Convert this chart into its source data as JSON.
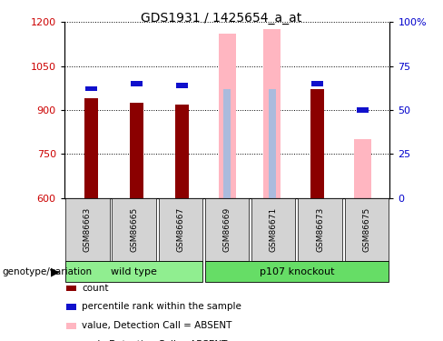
{
  "title": "GDS1931 / 1425654_a_at",
  "samples": [
    "GSM86663",
    "GSM86665",
    "GSM86667",
    "GSM86669",
    "GSM86671",
    "GSM86673",
    "GSM86675"
  ],
  "ylim_left": [
    600,
    1200
  ],
  "ylim_right": [
    0,
    100
  ],
  "yticks_left": [
    600,
    750,
    900,
    1050,
    1200
  ],
  "yticks_right": [
    0,
    25,
    50,
    75,
    100
  ],
  "ytick_right_labels": [
    "0",
    "25",
    "50",
    "75",
    "100%"
  ],
  "count_values": [
    940,
    925,
    920,
    null,
    null,
    970,
    null
  ],
  "rank_values": [
    62,
    65,
    64,
    null,
    null,
    65,
    50
  ],
  "absent_value_values": [
    null,
    null,
    null,
    1160,
    1175,
    null,
    800
  ],
  "absent_rank_values": [
    null,
    null,
    null,
    62,
    62,
    null,
    null
  ],
  "bar_color_count": "#8B0000",
  "bar_color_rank": "#1010CC",
  "bar_color_absent_value": "#FFB6C1",
  "bar_color_absent_rank": "#AABBDD",
  "background_color": "#ffffff",
  "plot_bg_color": "#ffffff",
  "label_color_left": "#CC0000",
  "label_color_right": "#0000CC",
  "group_configs": [
    {
      "start": 0,
      "end": 3,
      "label": "wild type",
      "color": "#90EE90"
    },
    {
      "start": 3,
      "end": 7,
      "label": "p107 knockout",
      "color": "#66DD66"
    }
  ],
  "genotype_label": "genotype/variation",
  "title_fontsize": 10,
  "legend_items": [
    {
      "color": "#8B0000",
      "label": "count"
    },
    {
      "color": "#1010CC",
      "label": "percentile rank within the sample"
    },
    {
      "color": "#FFB6C1",
      "label": "value, Detection Call = ABSENT"
    },
    {
      "color": "#AABBDD",
      "label": "rank, Detection Call = ABSENT"
    }
  ]
}
